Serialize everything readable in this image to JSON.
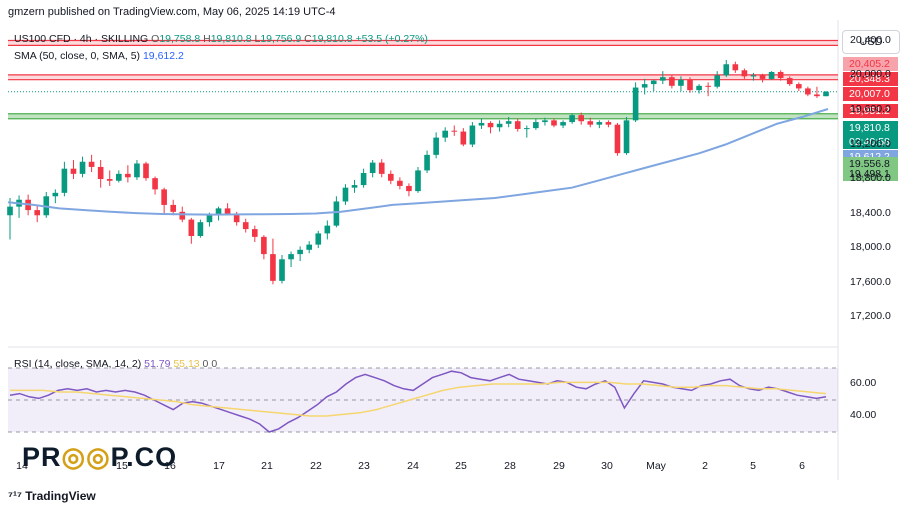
{
  "header": {
    "published": "gmzern published on TradingView.com, May 06, 2025 14:19 UTC-4"
  },
  "legend": {
    "symbol": "US100 CFD · 4h · SKILLING",
    "o_label": "O",
    "o_value": "19,758.8",
    "h_label": "H",
    "h_value": "19,810.8",
    "l_label": "L",
    "l_value": "19,756.9",
    "c_label": "C",
    "c_value": "19,810.8",
    "change": "+53.5 (+0.27%)",
    "sma_label": "SMA (50, close, 0, SMA, 5)",
    "sma_value": "19,612.2"
  },
  "currency": "USD",
  "price_labels": [
    {
      "text": "20,405.2",
      "color": "#f23645",
      "bg": "#f7a3ab"
    },
    {
      "text": "20,348.3",
      "color": "#ffffff",
      "bg": "#f23645"
    },
    {
      "text": "20,007.0",
      "color": "#ffffff",
      "bg": "#f23645"
    },
    {
      "text": "19,951.2",
      "color": "#ffffff",
      "bg": "#f23645"
    },
    {
      "text": "19,810.8",
      "color": "#ffffff",
      "bg": "#089981"
    },
    {
      "text": "02:40:58",
      "color": "#ffffff",
      "bg": "#089981"
    },
    {
      "text": "19,612.2",
      "color": "#ffffff",
      "bg": "#7fa6e0"
    },
    {
      "text": "19,556.8",
      "color": "#131722",
      "bg": "#81c784"
    },
    {
      "text": "19,498.1",
      "color": "#131722",
      "bg": "#81c784"
    }
  ],
  "rsi": {
    "label": "RSI (14, close, SMA, 14, 2)",
    "value1": "51.79",
    "value2": "55.13",
    "value3": "0",
    "value4": "0",
    "ticks": [
      "60.00",
      "40.00"
    ]
  },
  "watermark": {
    "part1": "PR",
    "part2": "P.CO"
  },
  "footer": {
    "brand": "TradingView"
  },
  "colors": {
    "up": "#089981",
    "down": "#f23645",
    "sma": "#7fa6e0",
    "rsi": "#7e57c2",
    "rsi_ma": "#f5d66e"
  },
  "chart_data": {
    "type": "candlestick",
    "title": "US100 CFD · 4h · SKILLING",
    "y_ticks": [
      "20,400.0",
      "20,000.0",
      "19,600.0",
      "19,200.0",
      "18,800.0",
      "18,400.0",
      "18,000.0",
      "17,600.0",
      "17,200.0"
    ],
    "y_range": [
      16900,
      20550
    ],
    "x_ticks": [
      "14",
      "15",
      "16",
      "17",
      "21",
      "22",
      "23",
      "24",
      "25",
      "28",
      "29",
      "30",
      "May",
      "2",
      "5",
      "6"
    ],
    "resistance_zones": [
      [
        20348.3,
        20405.2
      ],
      [
        19951.2,
        20007.0
      ]
    ],
    "support_zone": [
      19498.1,
      19556.8
    ],
    "candles": [
      [
        18380,
        18580,
        18100,
        18480
      ],
      [
        18480,
        18610,
        18350,
        18560
      ],
      [
        18560,
        18620,
        18380,
        18440
      ],
      [
        18440,
        18500,
        18300,
        18380
      ],
      [
        18380,
        18650,
        18350,
        18600
      ],
      [
        18600,
        18680,
        18520,
        18640
      ],
      [
        18640,
        19000,
        18600,
        18920
      ],
      [
        18920,
        19020,
        18800,
        18860
      ],
      [
        18860,
        19060,
        18820,
        19000
      ],
      [
        19000,
        19080,
        18880,
        18940
      ],
      [
        18940,
        19020,
        18700,
        18800
      ],
      [
        18800,
        18900,
        18720,
        18780
      ],
      [
        18780,
        18900,
        18760,
        18860
      ],
      [
        18860,
        18960,
        18760,
        18820
      ],
      [
        18820,
        19020,
        18790,
        18980
      ],
      [
        18980,
        19000,
        18780,
        18810
      ],
      [
        18810,
        18830,
        18620,
        18680
      ],
      [
        18680,
        18700,
        18400,
        18500
      ],
      [
        18500,
        18560,
        18380,
        18420
      ],
      [
        18420,
        18480,
        18300,
        18330
      ],
      [
        18330,
        18350,
        18050,
        18140
      ],
      [
        18140,
        18330,
        18120,
        18300
      ],
      [
        18300,
        18410,
        18250,
        18380
      ],
      [
        18380,
        18480,
        18320,
        18460
      ],
      [
        18460,
        18520,
        18380,
        18400
      ],
      [
        18400,
        18420,
        18260,
        18300
      ],
      [
        18300,
        18340,
        18180,
        18220
      ],
      [
        18220,
        18260,
        18070,
        18130
      ],
      [
        18130,
        18150,
        17870,
        17930
      ],
      [
        17930,
        18110,
        17580,
        17620
      ],
      [
        17620,
        17920,
        17590,
        17870
      ],
      [
        17870,
        17960,
        17780,
        17930
      ],
      [
        17930,
        18020,
        17850,
        17980
      ],
      [
        17980,
        18080,
        17940,
        18040
      ],
      [
        18040,
        18200,
        18000,
        18170
      ],
      [
        18170,
        18320,
        18100,
        18260
      ],
      [
        18260,
        18600,
        18240,
        18540
      ],
      [
        18540,
        18740,
        18500,
        18700
      ],
      [
        18700,
        18790,
        18640,
        18730
      ],
      [
        18730,
        18920,
        18700,
        18870
      ],
      [
        18870,
        19020,
        18820,
        18990
      ],
      [
        18990,
        19030,
        18820,
        18860
      ],
      [
        18860,
        18900,
        18740,
        18780
      ],
      [
        18780,
        18820,
        18680,
        18720
      ],
      [
        18720,
        18750,
        18600,
        18660
      ],
      [
        18660,
        18940,
        18640,
        18900
      ],
      [
        18900,
        19130,
        18870,
        19080
      ],
      [
        19080,
        19340,
        19040,
        19280
      ],
      [
        19280,
        19400,
        19230,
        19360
      ],
      [
        19360,
        19420,
        19300,
        19350
      ],
      [
        19350,
        19390,
        19180,
        19200
      ],
      [
        19200,
        19460,
        19170,
        19420
      ],
      [
        19420,
        19500,
        19380,
        19450
      ],
      [
        19450,
        19470,
        19330,
        19400
      ],
      [
        19400,
        19480,
        19350,
        19440
      ],
      [
        19440,
        19520,
        19400,
        19470
      ],
      [
        19470,
        19500,
        19350,
        19380
      ],
      [
        19380,
        19420,
        19280,
        19390
      ],
      [
        19390,
        19500,
        19370,
        19460
      ],
      [
        19460,
        19510,
        19420,
        19480
      ],
      [
        19480,
        19500,
        19400,
        19420
      ],
      [
        19420,
        19480,
        19390,
        19460
      ],
      [
        19460,
        19560,
        19440,
        19540
      ],
      [
        19540,
        19570,
        19430,
        19470
      ],
      [
        19470,
        19510,
        19400,
        19430
      ],
      [
        19430,
        19480,
        19390,
        19460
      ],
      [
        19460,
        19480,
        19400,
        19430
      ],
      [
        19430,
        19450,
        19070,
        19100
      ],
      [
        19100,
        19520,
        19080,
        19480
      ],
      [
        19480,
        19920,
        19460,
        19860
      ],
      [
        19860,
        19960,
        19780,
        19900
      ],
      [
        19900,
        19950,
        19820,
        19940
      ],
      [
        19940,
        20050,
        19900,
        19980
      ],
      [
        19980,
        20000,
        19850,
        19880
      ],
      [
        19880,
        19990,
        19820,
        19950
      ],
      [
        19950,
        19980,
        19800,
        19830
      ],
      [
        19830,
        19900,
        19790,
        19880
      ],
      [
        19880,
        19920,
        19760,
        19870
      ],
      [
        19870,
        20050,
        19850,
        20000
      ],
      [
        20000,
        20180,
        19980,
        20130
      ],
      [
        20130,
        20160,
        20030,
        20060
      ],
      [
        20060,
        20080,
        19960,
        19990
      ],
      [
        19990,
        20030,
        19940,
        20000
      ],
      [
        20000,
        20020,
        19920,
        19960
      ],
      [
        19960,
        20050,
        19950,
        20040
      ],
      [
        20040,
        20060,
        19940,
        19970
      ],
      [
        19970,
        19990,
        19880,
        19900
      ],
      [
        19900,
        19920,
        19820,
        19850
      ],
      [
        19850,
        19870,
        19760,
        19780
      ],
      [
        19780,
        19870,
        19740,
        19760
      ],
      [
        19760,
        19820,
        19757,
        19811
      ]
    ],
    "sma_series": [
      18530,
      18500,
      18460,
      18440,
      18420,
      18405,
      18395,
      18390,
      18388,
      18390,
      18392,
      18395,
      18400,
      18420,
      18460,
      18500,
      18520,
      18540,
      18560,
      18580,
      18620,
      18660,
      18700,
      18780,
      18860,
      18940,
      19020,
      19100,
      19200,
      19320,
      19440,
      19520,
      19612
    ],
    "rsi_range": [
      20,
      80
    ],
    "rsi_series": [
      53,
      54,
      52,
      51,
      53,
      56,
      57,
      56,
      57,
      55,
      56,
      55,
      56,
      55,
      53,
      50,
      47,
      44,
      48,
      49,
      48,
      46,
      44,
      42,
      40,
      38,
      35,
      30,
      32,
      36,
      39,
      43,
      47,
      52,
      55,
      60,
      64,
      66,
      64,
      62,
      59,
      57,
      56,
      60,
      64,
      66,
      68,
      67,
      64,
      63,
      62,
      64,
      66,
      63,
      62,
      61,
      60,
      62,
      61,
      58,
      57,
      60,
      62,
      58,
      45,
      54,
      62,
      61,
      60,
      58,
      57,
      56,
      59,
      60,
      62,
      63,
      59,
      57,
      56,
      58,
      57,
      55,
      53,
      52,
      51,
      52
    ],
    "rsi_ma_series": [
      56,
      56,
      56,
      55,
      55,
      54,
      53,
      52,
      51,
      50,
      49,
      47,
      46,
      45,
      44,
      43,
      42,
      41,
      40,
      40,
      41,
      42,
      44,
      47,
      50,
      53,
      56,
      58,
      59,
      60,
      60,
      60,
      60,
      61,
      61,
      61,
      61,
      60,
      60,
      59,
      58,
      58,
      59,
      59,
      58,
      57,
      57,
      56,
      55,
      54
    ]
  }
}
